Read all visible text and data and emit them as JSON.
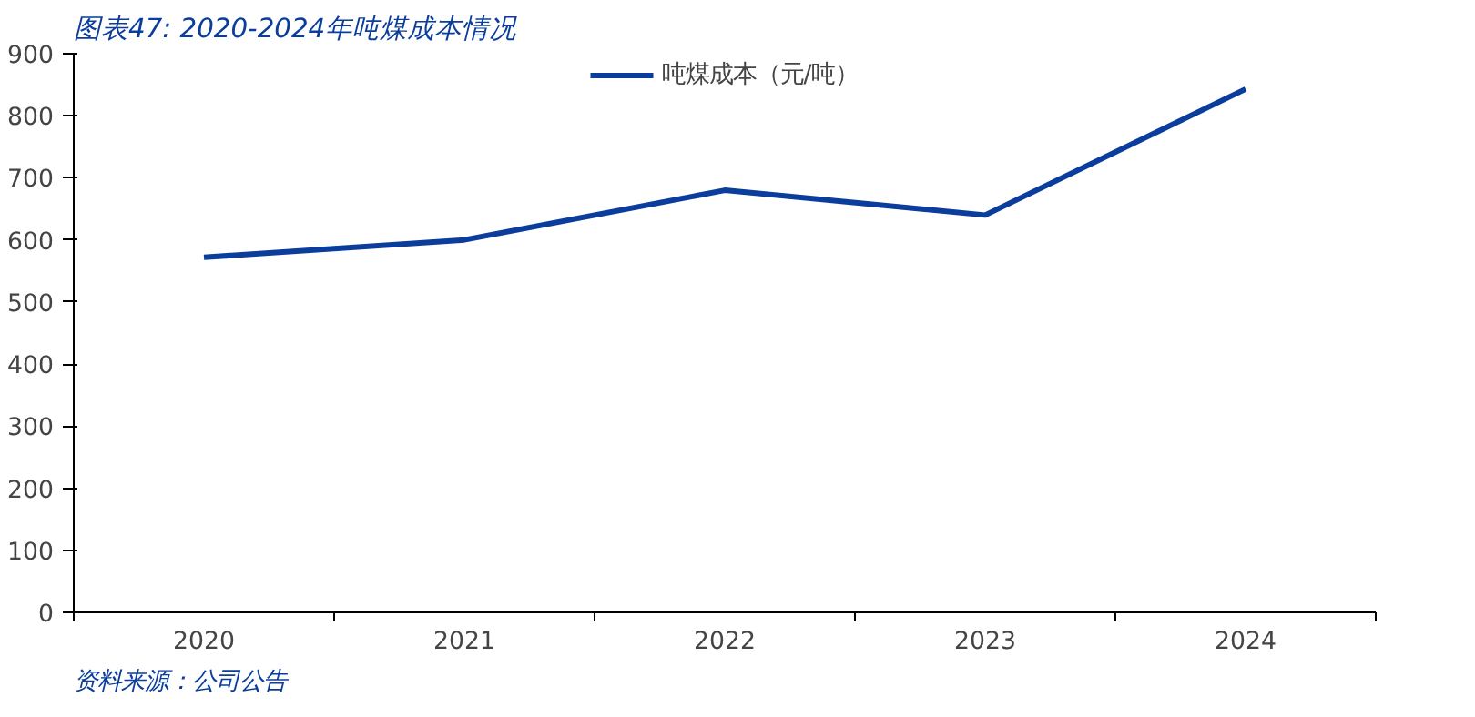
{
  "chart_data": {
    "type": "line",
    "title": "图表47: 2020-2024年吨煤成本情况",
    "categories": [
      "2020",
      "2021",
      "2022",
      "2023",
      "2024"
    ],
    "series": [
      {
        "name": "吨煤成本（元/吨）",
        "color": "#0a3d9c",
        "values": [
          572,
          600,
          680,
          640,
          843
        ]
      }
    ],
    "ylim": [
      0,
      900
    ],
    "yticks": [
      0,
      100,
      200,
      300,
      400,
      500,
      600,
      700,
      800,
      900
    ],
    "grid": false,
    "legend": "top",
    "marker": "none",
    "line_style": "solid",
    "annotations": [
      "资料来源：公司公告"
    ]
  }
}
